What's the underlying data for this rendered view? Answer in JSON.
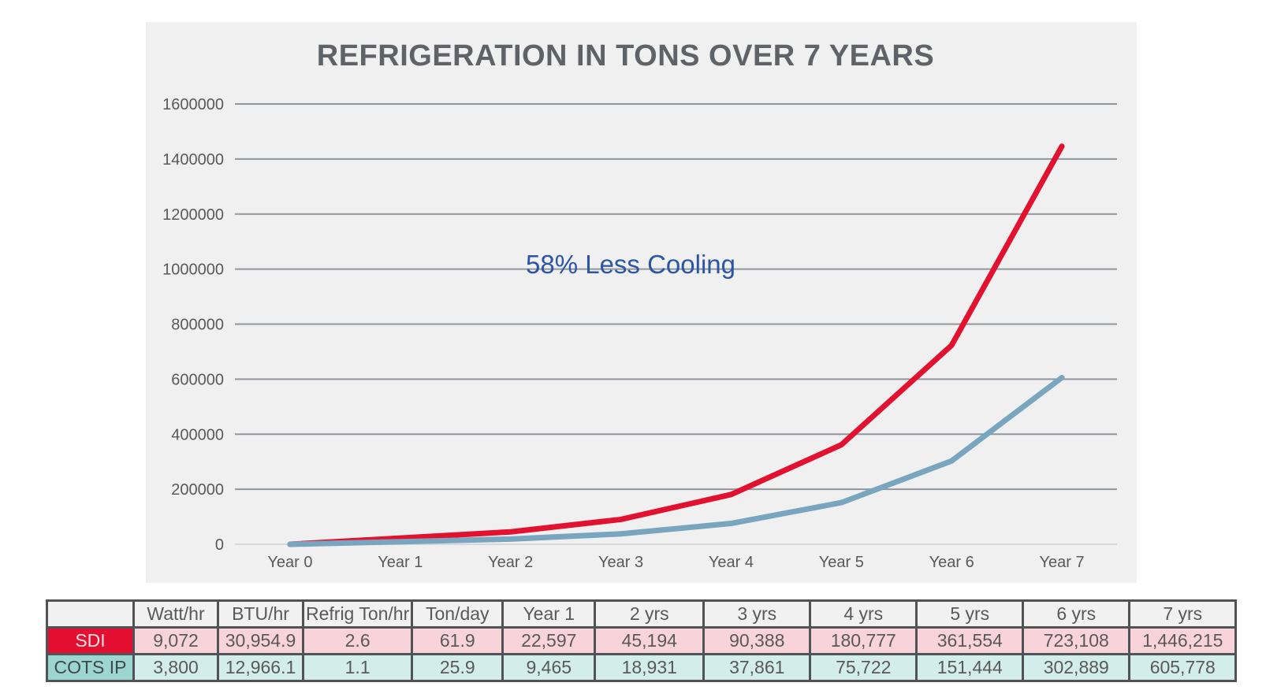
{
  "chart_data": {
    "type": "line",
    "title": "REFRIGERATION IN TONS OVER 7 YEARS",
    "categories": [
      "Year 0",
      "Year 1",
      "Year 2",
      "Year 3",
      "Year 4",
      "Year 5",
      "Year 6",
      "Year 7"
    ],
    "series": [
      {
        "name": "SDI",
        "color": "#e31130",
        "values": [
          0,
          22597,
          45194,
          90388,
          180777,
          361554,
          723108,
          1446215
        ]
      },
      {
        "name": "COTS IP",
        "color": "#79a5bf",
        "values": [
          0,
          9465,
          18931,
          37861,
          75722,
          151444,
          302889,
          605778
        ]
      }
    ],
    "xlabel": "",
    "ylabel": "",
    "ylim": [
      0,
      1600000
    ],
    "ytick_step": 200000,
    "grid": true,
    "legend_position": "none",
    "annotation": {
      "text": "58% Less Cooling",
      "color": "#2c55a6"
    },
    "colors": {
      "plot_background": "#f0f0f0",
      "gridline": "#8f969c",
      "zero_line": "#d6d8da",
      "tick_label": "#595959",
      "title": "#5f6368"
    }
  },
  "table": {
    "columns": [
      "",
      "Watt/hr",
      "BTU/hr",
      "Refrig Ton/hr",
      "Ton/day",
      "Year 1",
      "2 yrs",
      "3 yrs",
      "4 yrs",
      "5 yrs",
      "6 yrs",
      "7 yrs"
    ],
    "rows": [
      {
        "label": "SDI",
        "values": [
          "9,072",
          "30,954.9",
          "2.6",
          "61.9",
          "22,597",
          "45,194",
          "90,388",
          "180,777",
          "361,554",
          "723,108",
          "1,446,215"
        ],
        "label_bg": "#e40e31",
        "label_color": "#f8e4e7",
        "cell_bg": "#f9d3da",
        "cell_color": "#595959"
      },
      {
        "label": "COTS IP",
        "values": [
          "3,800",
          "12,966.1",
          "1.1",
          "25.9",
          "9,465",
          "18,931",
          "37,861",
          "75,722",
          "151,444",
          "302,889",
          "605,778"
        ],
        "label_bg": "#9bd6d1",
        "label_color": "#434749",
        "cell_bg": "#d2edeb",
        "cell_color": "#595959"
      }
    ]
  }
}
